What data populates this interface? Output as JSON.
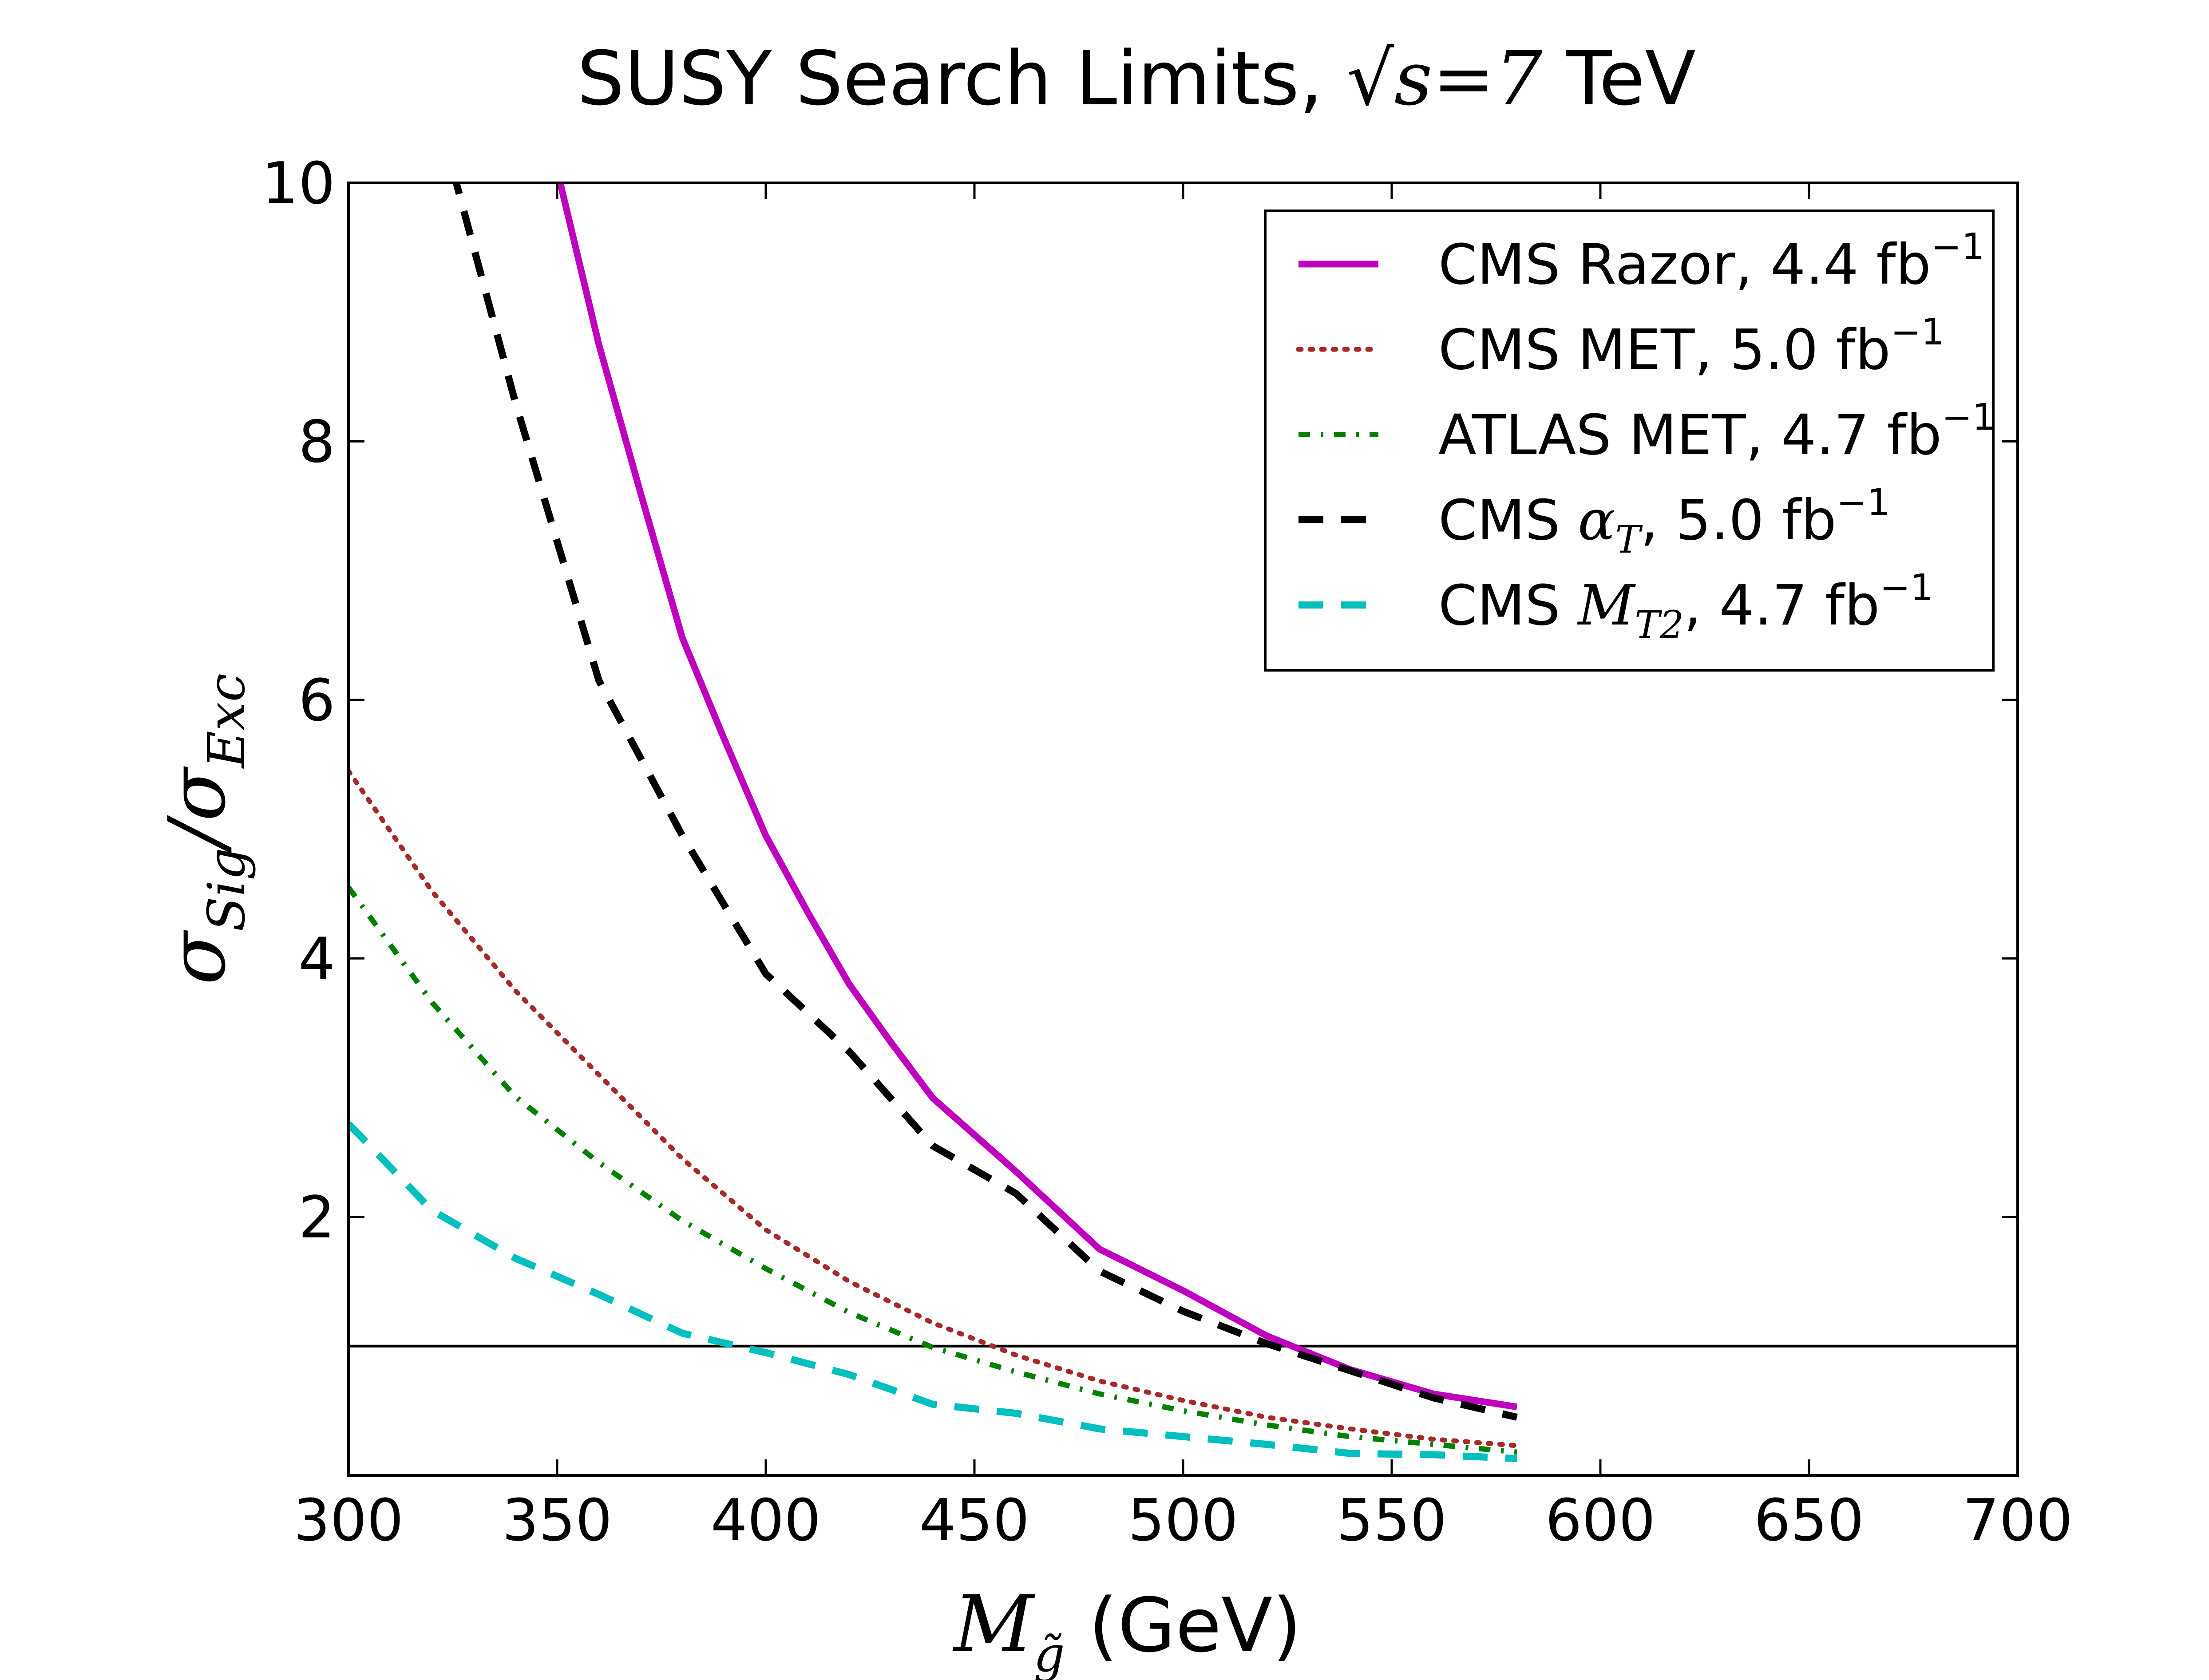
{
  "chart_data": {
    "type": "line",
    "title": {
      "prefix": "SUSY Search Limits, ",
      "sqrt_var": "s",
      "eq_value": "=7",
      "suffix": " TeV"
    },
    "xlabel": {
      "var": "M",
      "subscript": "g̃",
      "unit": " (GeV)"
    },
    "ylabel": {
      "num_var": "σ",
      "num_sub": "Sig",
      "slash": "/",
      "den_var": "σ",
      "den_sub": "Exc"
    },
    "xlim": [
      300,
      700
    ],
    "ylim": [
      0,
      10
    ],
    "x_ticks": [
      300,
      350,
      400,
      450,
      500,
      550,
      600,
      650,
      700
    ],
    "y_ticks": [
      2,
      4,
      6,
      8,
      10
    ],
    "reference_line": {
      "y": 1,
      "color": "#000000"
    },
    "grid": false,
    "legend_position": "top-right",
    "series": [
      {
        "name": "CMS Razor, 4.4 fb",
        "name_sup": "−1",
        "color": "#bf00bf",
        "style": "solid",
        "points": [
          [
            350,
            10.1
          ],
          [
            360,
            8.75
          ],
          [
            370,
            7.6
          ],
          [
            380,
            6.48
          ],
          [
            390,
            5.7
          ],
          [
            400,
            4.95
          ],
          [
            410,
            4.36
          ],
          [
            420,
            3.8
          ],
          [
            430,
            3.35
          ],
          [
            440,
            2.92
          ],
          [
            460,
            2.35
          ],
          [
            480,
            1.75
          ],
          [
            500,
            1.43
          ],
          [
            520,
            1.08
          ],
          [
            540,
            0.82
          ],
          [
            560,
            0.63
          ],
          [
            580,
            0.53
          ]
        ]
      },
      {
        "name": "CMS MET, 5.0 fb",
        "name_sup": "−1",
        "color": "#a52a2a",
        "style": "dotted",
        "points": [
          [
            300,
            5.45
          ],
          [
            320,
            4.52
          ],
          [
            340,
            3.75
          ],
          [
            360,
            3.1
          ],
          [
            380,
            2.45
          ],
          [
            400,
            1.9
          ],
          [
            420,
            1.5
          ],
          [
            440,
            1.18
          ],
          [
            460,
            0.93
          ],
          [
            480,
            0.73
          ],
          [
            500,
            0.58
          ],
          [
            520,
            0.45
          ],
          [
            540,
            0.36
          ],
          [
            560,
            0.28
          ],
          [
            580,
            0.23
          ]
        ]
      },
      {
        "name": "ATLAS MET, 4.7 fb",
        "name_sup": "−1",
        "color": "#008000",
        "style": "dashdot",
        "points": [
          [
            300,
            4.55
          ],
          [
            320,
            3.66
          ],
          [
            340,
            2.93
          ],
          [
            360,
            2.42
          ],
          [
            380,
            1.97
          ],
          [
            400,
            1.6
          ],
          [
            420,
            1.26
          ],
          [
            440,
            0.99
          ],
          [
            460,
            0.8
          ],
          [
            480,
            0.63
          ],
          [
            500,
            0.5
          ],
          [
            520,
            0.39
          ],
          [
            540,
            0.3
          ],
          [
            560,
            0.24
          ],
          [
            580,
            0.18
          ]
        ]
      },
      {
        "name": "CMS , 5.0 fb",
        "label_math": "α",
        "label_math_sub": "T",
        "name_sup": "−1",
        "color": "#000000",
        "style": "dashed",
        "points": [
          [
            325,
            10.1
          ],
          [
            340,
            8.3
          ],
          [
            360,
            6.15
          ],
          [
            380,
            4.95
          ],
          [
            400,
            3.88
          ],
          [
            420,
            3.28
          ],
          [
            440,
            2.55
          ],
          [
            460,
            2.18
          ],
          [
            480,
            1.58
          ],
          [
            500,
            1.27
          ],
          [
            520,
            1.02
          ],
          [
            540,
            0.81
          ],
          [
            560,
            0.6
          ],
          [
            580,
            0.45
          ]
        ]
      },
      {
        "name": "CMS , 4.7 fb",
        "label_math": "M",
        "label_math_sub": "T2",
        "name_sup": "−1",
        "color": "#00bfbf",
        "style": "dashed",
        "points": [
          [
            300,
            2.72
          ],
          [
            320,
            2.05
          ],
          [
            340,
            1.68
          ],
          [
            360,
            1.4
          ],
          [
            380,
            1.1
          ],
          [
            400,
            0.95
          ],
          [
            420,
            0.78
          ],
          [
            440,
            0.55
          ],
          [
            460,
            0.48
          ],
          [
            480,
            0.36
          ],
          [
            500,
            0.3
          ],
          [
            520,
            0.24
          ],
          [
            540,
            0.17
          ],
          [
            560,
            0.16
          ],
          [
            580,
            0.13
          ]
        ]
      }
    ]
  }
}
